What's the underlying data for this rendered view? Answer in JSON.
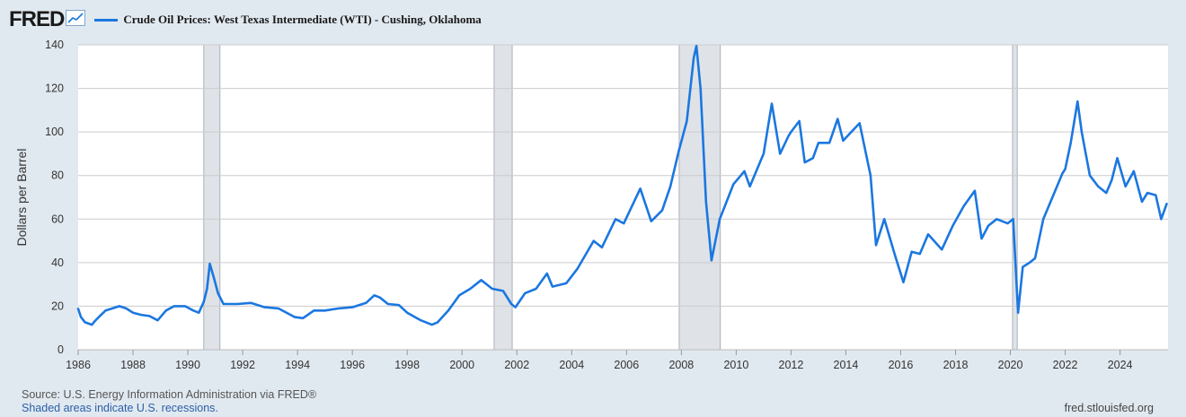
{
  "logo_text": "FRED",
  "legend_label": "Crude Oil Prices: West Texas Intermediate (WTI) - Cushing, Oklahoma",
  "source_text": "Source: U.S. Energy Information Administration via FRED®",
  "note_text": "Shaded areas indicate U.S. recessions.",
  "site_text": "fred.stlouisfed.org",
  "colors": {
    "line": "#1b77e0",
    "recession": "#dfe3e8",
    "grid": "#cccccc",
    "background": "#e1e9f0"
  },
  "chart_data": {
    "type": "line",
    "title": "Crude Oil Prices: West Texas Intermediate (WTI) - Cushing, Oklahoma",
    "xlabel": "",
    "ylabel": "Dollars per Barrel",
    "xlim": [
      1986.0,
      2025.75
    ],
    "ylim": [
      0,
      140
    ],
    "x_ticks": [
      "1986",
      "1988",
      "1990",
      "1992",
      "1994",
      "1996",
      "1998",
      "2000",
      "2002",
      "2004",
      "2006",
      "2008",
      "2010",
      "2012",
      "2014",
      "2016",
      "2018",
      "2020",
      "2022",
      "2024"
    ],
    "y_ticks": [
      "0",
      "20",
      "40",
      "60",
      "80",
      "100",
      "120",
      "140"
    ],
    "grid": "horizontal",
    "recessions": [
      [
        1990.58,
        1991.17
      ],
      [
        2001.17,
        2001.83
      ],
      [
        2007.92,
        2009.42
      ],
      [
        2020.08,
        2020.25
      ]
    ],
    "series": [
      {
        "name": "Crude Oil Prices: West Texas Intermediate (WTI) - Cushing, Oklahoma",
        "x": [
          1986.0,
          1986.1,
          1986.25,
          1986.5,
          1986.6,
          1986.75,
          1987.0,
          1987.25,
          1987.5,
          1987.75,
          1988.0,
          1988.3,
          1988.6,
          1988.9,
          1989.2,
          1989.5,
          1989.9,
          1990.2,
          1990.4,
          1990.58,
          1990.7,
          1990.8,
          1990.95,
          1991.1,
          1991.3,
          1991.8,
          1992.3,
          1992.8,
          1993.3,
          1993.9,
          1994.2,
          1994.6,
          1995.0,
          1995.5,
          1996.0,
          1996.5,
          1996.8,
          1997.0,
          1997.3,
          1997.7,
          1998.0,
          1998.5,
          1998.9,
          1999.1,
          1999.5,
          1999.9,
          2000.3,
          2000.7,
          2000.9,
          2001.1,
          2001.5,
          2001.8,
          2001.95,
          2002.3,
          2002.7,
          2003.1,
          2003.3,
          2003.8,
          2004.2,
          2004.8,
          2005.1,
          2005.6,
          2005.9,
          2006.5,
          2006.9,
          2007.3,
          2007.6,
          2007.9,
          2008.2,
          2008.45,
          2008.55,
          2008.7,
          2008.9,
          2009.1,
          2009.4,
          2009.9,
          2010.3,
          2010.5,
          2011.0,
          2011.3,
          2011.6,
          2011.9,
          2012.0,
          2012.3,
          2012.5,
          2012.8,
          2013.0,
          2013.4,
          2013.7,
          2013.9,
          2014.2,
          2014.5,
          2014.9,
          2015.1,
          2015.4,
          2015.8,
          2016.1,
          2016.4,
          2016.7,
          2017.0,
          2017.5,
          2017.9,
          2018.3,
          2018.7,
          2018.95,
          2019.2,
          2019.5,
          2019.9,
          2020.1,
          2020.28,
          2020.45,
          2020.7,
          2020.9,
          2021.2,
          2021.6,
          2021.9,
          2022.0,
          2022.2,
          2022.45,
          2022.6,
          2022.9,
          2023.2,
          2023.5,
          2023.7,
          2023.9,
          2024.2,
          2024.5,
          2024.8,
          2025.0,
          2025.3,
          2025.5,
          2025.7
        ],
        "y": [
          18.8,
          15.0,
          12.6,
          11.5,
          13.0,
          15.0,
          18.0,
          19.0,
          20.0,
          19.0,
          17.0,
          16.0,
          15.5,
          13.5,
          18.0,
          20.0,
          20.0,
          18.0,
          17.0,
          22.0,
          28.0,
          39.5,
          33.0,
          26.0,
          21.0,
          21.0,
          21.5,
          19.5,
          19.0,
          15.0,
          14.5,
          18.0,
          18.0,
          19.0,
          19.5,
          21.5,
          25.0,
          24.0,
          21.0,
          20.5,
          17.0,
          13.5,
          11.5,
          12.5,
          18.0,
          25.0,
          28.0,
          32.0,
          30.0,
          28.0,
          27.0,
          21.0,
          19.5,
          26.0,
          28.0,
          35.0,
          29.0,
          30.5,
          37.0,
          50.0,
          47.0,
          60.0,
          58.0,
          74.0,
          59.0,
          64.0,
          75.0,
          91.0,
          105.0,
          134.0,
          139.5,
          120.0,
          68.0,
          41.0,
          60.0,
          76.0,
          82.0,
          75.0,
          90.0,
          113.0,
          90.0,
          98.0,
          100.0,
          105.0,
          86.0,
          88.0,
          95.0,
          95.0,
          106.0,
          96.0,
          100.0,
          104.0,
          80.0,
          48.0,
          60.0,
          43.0,
          31.0,
          45.0,
          44.0,
          53.0,
          46.0,
          57.0,
          66.0,
          73.0,
          51.0,
          57.0,
          60.0,
          58.0,
          60.0,
          17.0,
          38.0,
          40.0,
          42.0,
          60.0,
          72.0,
          81.0,
          83.0,
          95.0,
          114.0,
          100.0,
          80.0,
          75.0,
          72.0,
          78.0,
          88.0,
          75.0,
          82.0,
          68.0,
          72.0,
          71.0,
          60.0,
          67.0
        ]
      }
    ]
  }
}
